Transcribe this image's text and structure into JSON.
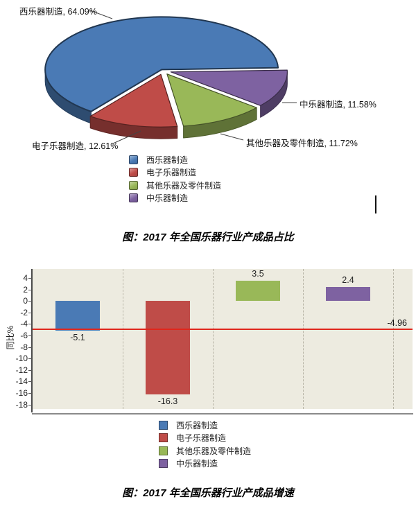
{
  "chart_data": [
    {
      "type": "pie",
      "style": "3d-exploded",
      "title": "图：2017 年全国乐器行业产成品占比",
      "labels": [
        "西乐器制造",
        "电子乐器制造",
        "其他乐器及零件制造",
        "中乐器制造"
      ],
      "values": [
        64.09,
        12.61,
        11.72,
        11.58
      ],
      "unit": "%",
      "colors": [
        "#4a7ab5",
        "#bf4c48",
        "#99b858",
        "#7e62a1"
      ],
      "callouts": [
        "西乐器制造, 64.09%",
        "电子乐器制造, 12.61%",
        "其他乐器及零件制造, 11.72%",
        "中乐器制造, 11.58%"
      ],
      "legend_position": "bottom"
    },
    {
      "type": "bar",
      "title": "图：2017 年全国乐器行业产成品增速",
      "categories": [
        "西乐器制造",
        "电子乐器制造",
        "其他乐器及零件制造",
        "中乐器制造"
      ],
      "values": [
        -5.1,
        -16.3,
        3.5,
        2.4
      ],
      "value_labels": [
        "-5.1",
        "-16.3",
        "3.5",
        "2.4"
      ],
      "colors": [
        "#4a7ab5",
        "#bf4c48",
        "#99b858",
        "#7e62a1"
      ],
      "ylabel": "同比%",
      "ylim": [
        -18,
        4
      ],
      "yticks": [
        4,
        2,
        0,
        -2,
        -4,
        -6,
        -8,
        -10,
        -12,
        -14,
        -16,
        -18
      ],
      "reference_line": {
        "value": -4.96,
        "label": "-4.96",
        "color": "#e0261c"
      },
      "plot_background": "#edebe0",
      "grid": "vertical-dashed",
      "legend_position": "bottom"
    }
  ]
}
